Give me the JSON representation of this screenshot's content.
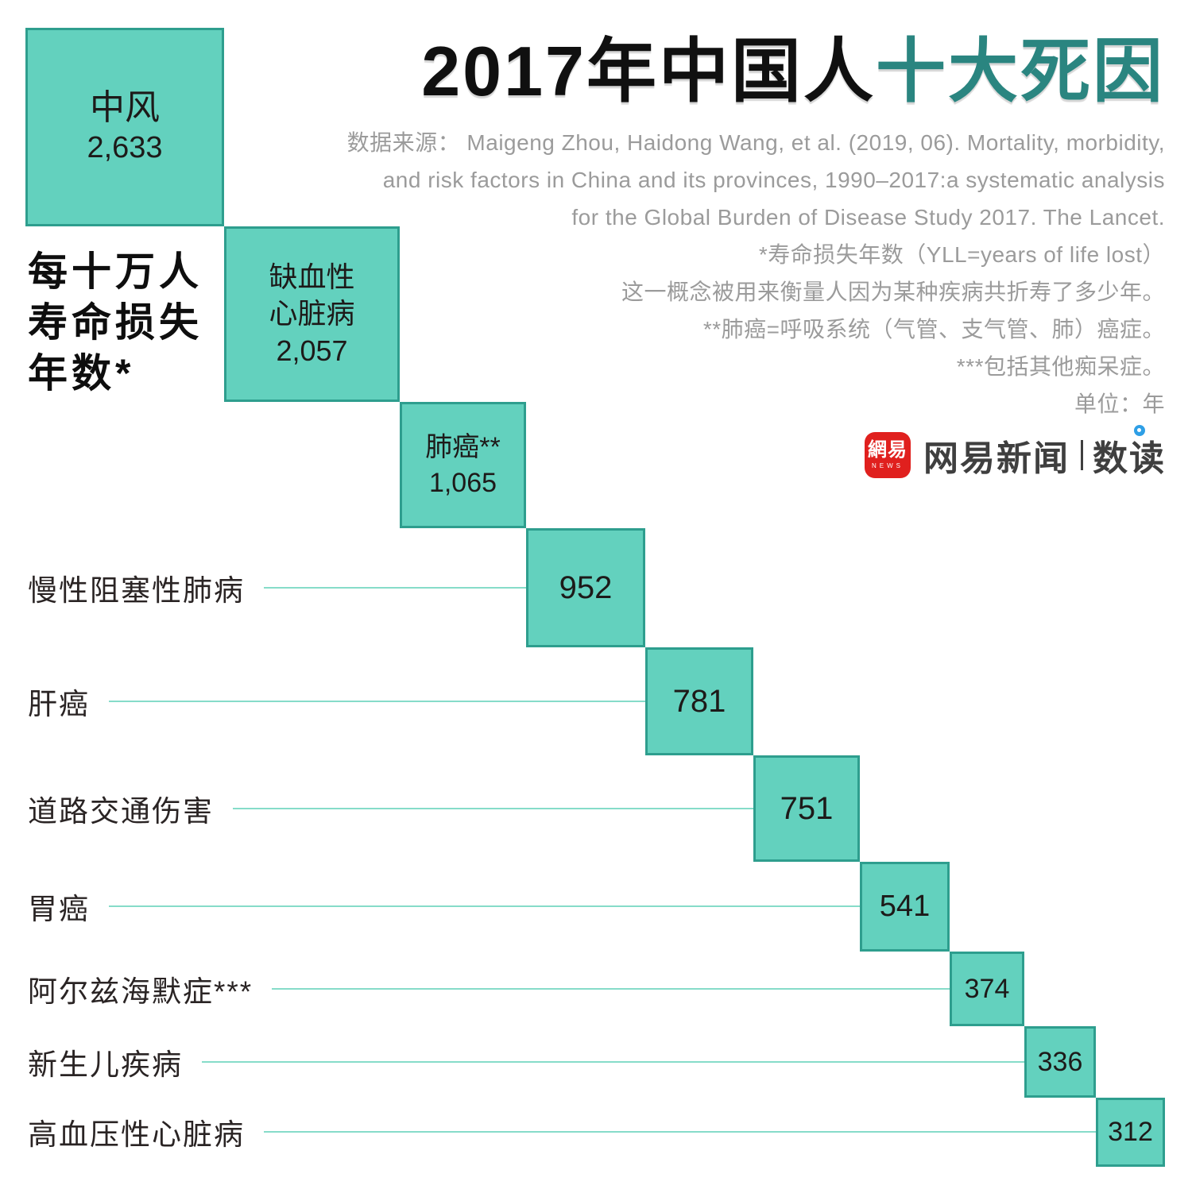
{
  "header": {
    "title_prefix": "2017年中国人",
    "title_highlight": "十大死因",
    "notes": [
      "数据来源：  Maigeng Zhou, Haidong Wang, et al. (2019, 06). Mortality, morbidity,",
      "and risk factors in China and its provinces, 1990–2017:a systematic analysis",
      "for the Global Burden of Disease Study 2017. The Lancet.",
      "*寿命损失年数（YLL=years of life lost）",
      "这一概念被用来衡量人因为某种疾病共折寿了多少年。",
      "**肺癌=呼吸系统（气管、支气管、肺）癌症。",
      "***包括其他痴呆症。",
      "单位：年"
    ]
  },
  "logo": {
    "icon_main": "網易",
    "icon_sub": "NEWS",
    "name": "网易新闻",
    "brand": "数读",
    "dot_icon": "blue-dot-icon"
  },
  "colors": {
    "square_fill": "#63D1BE",
    "square_border": "#2E9E8E",
    "title_highlight": "#2A8580",
    "leader_line": "#86DCC9",
    "note_gray": "#9B9B9B",
    "text_black": "#101010",
    "logo_red": "#E0201E",
    "logo_blue_dot": "#2E9FE6"
  },
  "chart_data": {
    "type": "area",
    "variant": "cascading squares (square area proportional to value), diagonal waterfall from top-left to bottom-right",
    "title": "2017年中国人十大死因",
    "ylabel": "每十万人寿命损失年数*",
    "unit": "年",
    "categories": [
      "中风",
      "缺血性心脏病",
      "肺癌**",
      "慢性阻塞性肺病",
      "肝癌",
      "道路交通伤害",
      "胃癌",
      "阿尔兹海默症***",
      "新生儿疾病",
      "高血压性心脏病"
    ],
    "values": [
      2633,
      2057,
      1065,
      952,
      781,
      751,
      541,
      374,
      336,
      312
    ],
    "value_labels": [
      "2,633",
      "2,057",
      "1,065",
      "952",
      "781",
      "751",
      "541",
      "374",
      "336",
      "312"
    ],
    "axis_note_lines": [
      "每十万人",
      "寿命损失",
      "年数*"
    ],
    "boxes": [
      {
        "lines": [
          "中风"
        ],
        "value": "2,633"
      },
      {
        "lines": [
          "缺血性",
          "心脏病"
        ],
        "value": "2,057"
      },
      {
        "lines": [
          "肺癌**"
        ],
        "value": "1,065"
      },
      {
        "value": "952"
      },
      {
        "value": "781"
      },
      {
        "value": "751"
      },
      {
        "value": "541"
      },
      {
        "value": "374"
      },
      {
        "value": "336"
      },
      {
        "value": "312"
      }
    ],
    "leaders": [
      {
        "label": "慢性阻塞性肺病",
        "value": 952
      },
      {
        "label": "肝癌",
        "value": 781
      },
      {
        "label": "道路交通伤害",
        "value": 751
      },
      {
        "label": "胃癌",
        "value": 541
      },
      {
        "label": "阿尔兹海默症***",
        "value": 374
      },
      {
        "label": "新生儿疾病",
        "value": 336
      },
      {
        "label": "高血压性心脏病",
        "value": 312
      }
    ],
    "layout": {
      "grid": false,
      "legend": "none",
      "labels_inside_first_three_squares": true,
      "remaining_labels_on_left_with_leader_lines": true
    }
  }
}
